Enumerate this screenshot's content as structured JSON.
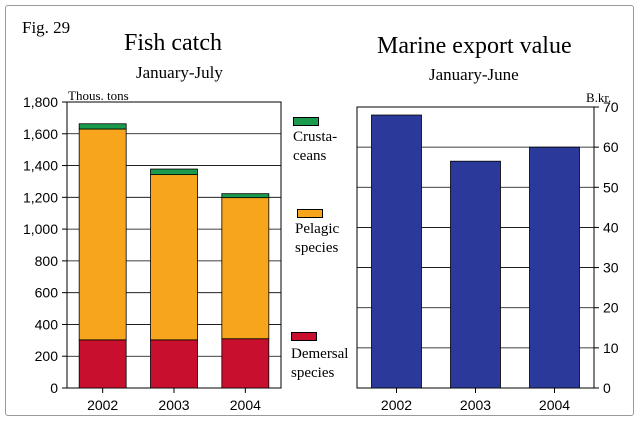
{
  "figure_label": "Fig. 29",
  "colors": {
    "demersal": "#c8102e",
    "pelagic": "#f7a51c",
    "crustaceans": "#1a9a4c",
    "export": "#2b3a9a"
  },
  "chart_data": [
    {
      "type": "bar",
      "stacked": true,
      "title": "Fish catch",
      "subtitle": "January-July",
      "ylabel": "Thous. tons",
      "categories": [
        "2002",
        "2003",
        "2004"
      ],
      "ylim": [
        0,
        1800
      ],
      "yticks": [
        0,
        200,
        400,
        600,
        800,
        1000,
        1200,
        1400,
        1600,
        1800
      ],
      "ytick_labels": [
        "0",
        "200",
        "400",
        "600",
        "800",
        "1,000",
        "1,200",
        "1,400",
        "1,600",
        "1,800"
      ],
      "grid": true,
      "series": [
        {
          "name": "Demersal species",
          "values": [
            303,
            303,
            310
          ]
        },
        {
          "name": "Pelagic species",
          "values": [
            1327,
            1040,
            888
          ]
        },
        {
          "name": "Crustaceans",
          "values": [
            33,
            35,
            25
          ]
        }
      ],
      "legend_labels": [
        "Crusta-\nceans",
        "Pelagic\nspecies",
        "Demersal\nspecies"
      ]
    },
    {
      "type": "bar",
      "title": "Marine export value",
      "subtitle": "January-June",
      "ylabel": "B.kr.",
      "categories": [
        "2002",
        "2003",
        "2004"
      ],
      "ylim": [
        0,
        70
      ],
      "yticks": [
        0,
        10,
        20,
        30,
        40,
        50,
        60,
        70
      ],
      "ytick_labels": [
        "0",
        "10",
        "20",
        "30",
        "40",
        "50",
        "60",
        "70"
      ],
      "grid": true,
      "values": [
        68,
        56.5,
        60
      ]
    }
  ]
}
